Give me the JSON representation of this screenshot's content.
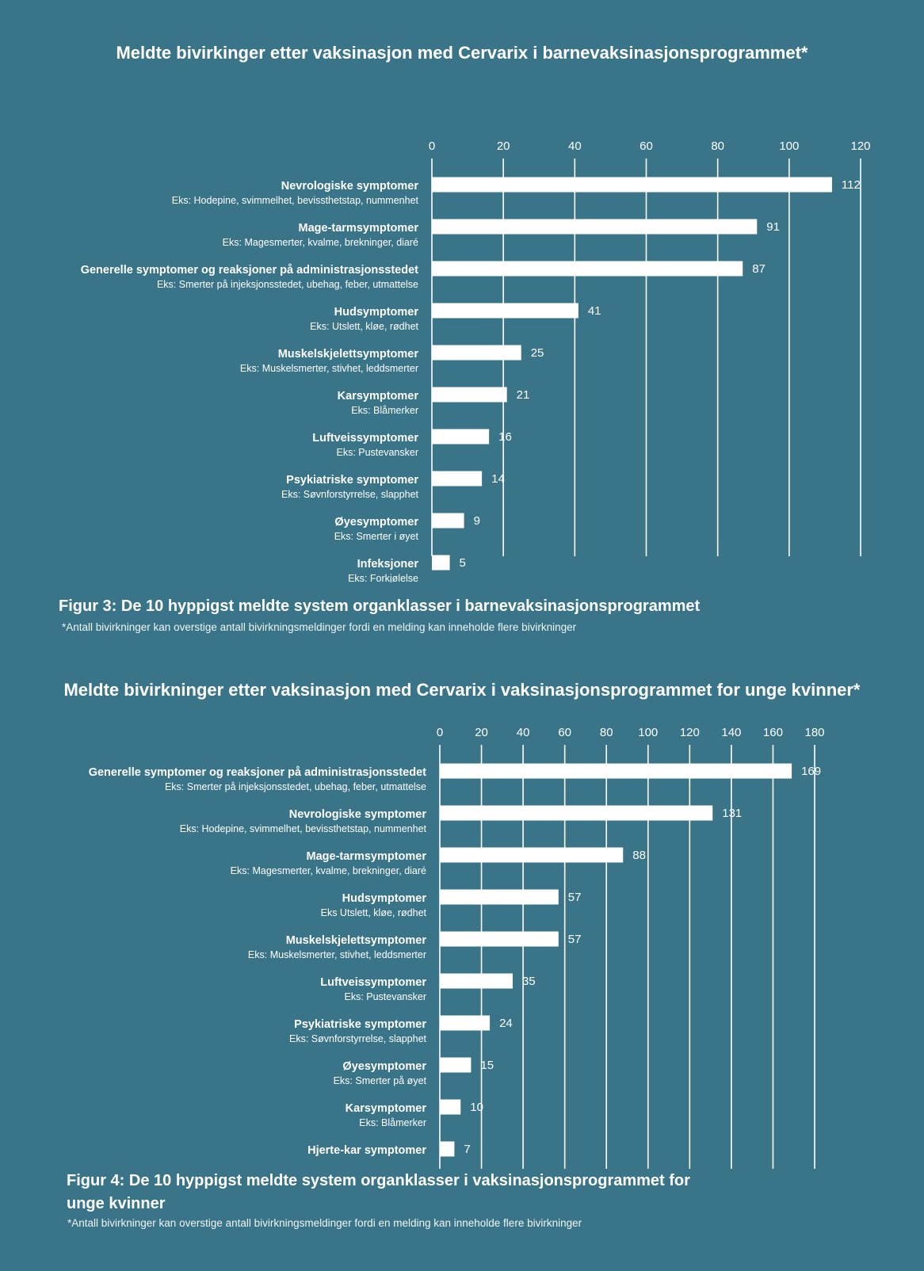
{
  "colors": {
    "background": "#3a7488",
    "bar": "#ffffff",
    "grid": "#ffffff",
    "text": "#ffffff"
  },
  "chart1": {
    "title": "Meldte bivirkinger etter vaksinasjon med Cervarix i barnevaksinasjonsprogrammet*",
    "caption": "Figur 3: De 10 hyppigst meldte system organklasser i barnevaksinasjonsprogrammet",
    "footnote": "*Antall bivirkninger kan overstige antall bivirkningsmeldinger fordi en melding kan inneholde flere bivirkninger"
  },
  "chart2": {
    "title": "Meldte bivirkninger etter vaksinasjon med Cervarix i vaksinasjonsprogrammet for unge kvinner*",
    "caption_line1": "Figur 4: De 10 hyppigst meldte system organklasser i vaksinasjonsprogrammet for",
    "caption_line2": "unge kvinner",
    "footnote": "*Antall bivirkninger kan overstige antall bivirkningsmeldinger fordi en melding kan inneholde flere bivirkninger"
  },
  "chart_data": [
    {
      "type": "bar",
      "orientation": "horizontal",
      "title": "Meldte bivirkinger etter vaksinasjon med Cervarix i barnevaksinasjonsprogrammet*",
      "xlim": [
        0,
        120
      ],
      "xticks": [
        0,
        20,
        40,
        60,
        80,
        100,
        120
      ],
      "grid": true,
      "categories": [
        "Nevrologiske symptomer",
        "Mage-tarmsymptomer",
        "Generelle symptomer og reaksjoner på administrasjonsstedet",
        "Hudsymptomer",
        "Muskelskjelettsymptomer",
        "Karsymptomer",
        "Luftveissymptomer",
        "Psykiatriske symptomer",
        "Øyesymptomer",
        "Infeksjoner"
      ],
      "subtitles": [
        "Eks: Hodepine, svimmelhet, bevissthetstap, nummenhet",
        "Eks: Magesmerter, kvalme, brekninger, diaré",
        "Eks: Smerter på injeksjonsstedet, ubehag, feber, utmattelse",
        "Eks: Utslett, kløe, rødhet",
        "Eks: Muskelsmerter, stivhet, leddsmerter",
        "Eks: Blåmerker",
        "Eks: Pustevansker",
        "Eks: Søvnforstyrrelse, slapphet",
        "Eks: Smerter i øyet",
        "Eks: Forkjølelse"
      ],
      "values": [
        112,
        91,
        87,
        41,
        25,
        21,
        16,
        14,
        9,
        5
      ]
    },
    {
      "type": "bar",
      "orientation": "horizontal",
      "title": "Meldte bivirkninger etter vaksinasjon med Cervarix i vaksinasjonsprogrammet for unge kvinner*",
      "xlim": [
        0,
        180
      ],
      "xticks": [
        0,
        20,
        40,
        60,
        80,
        100,
        120,
        140,
        160,
        180
      ],
      "grid": true,
      "categories": [
        "Generelle symptomer og reaksjoner på administrasjonsstedet",
        "Nevrologiske symptomer",
        "Mage-tarmsymptomer",
        "Hudsymptomer",
        "Muskelskjelettsymptomer",
        "Luftveissymptomer",
        "Psykiatriske symptomer",
        "Øyesymptomer",
        "Karsymptomer",
        "Hjerte-kar symptomer"
      ],
      "subtitles": [
        "Eks: Smerter på injeksjonsstedet, ubehag, feber, utmattelse",
        "Eks: Hodepine, svimmelhet, bevissthetstap, nummenhet",
        "Eks: Magesmerter, kvalme, brekninger, diaré",
        "Eks Utslett, kløe, rødhet",
        "Eks: Muskelsmerter, stivhet, leddsmerter",
        "Eks: Pustevansker",
        "Eks: Søvnforstyrrelse, slapphet",
        "Eks: Smerter på øyet",
        "Eks: Blåmerker",
        ""
      ],
      "values": [
        169,
        131,
        88,
        57,
        57,
        35,
        24,
        15,
        10,
        7
      ]
    }
  ]
}
